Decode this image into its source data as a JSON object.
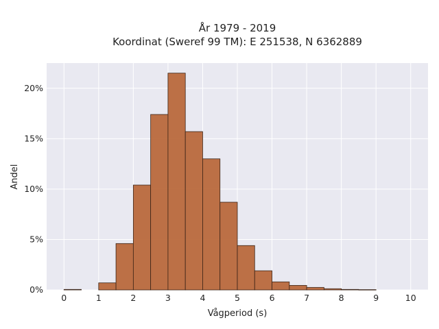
{
  "chart_data": {
    "type": "bar",
    "title_lines": [
      "År 1979 - 2019",
      "Koordinat (Sweref 99 TM): E 251538, N 6362889"
    ],
    "xlabel": "Vågperiod (s)",
    "ylabel": "Andel",
    "xlim": [
      -0.5,
      10.5
    ],
    "ylim": [
      0,
      22.5
    ],
    "x_ticks": [
      0,
      1,
      2,
      3,
      4,
      5,
      6,
      7,
      8,
      9,
      10
    ],
    "y_ticks": [
      0,
      5,
      10,
      15,
      20
    ],
    "y_tick_labels": [
      "0%",
      "5%",
      "10%",
      "15%",
      "20%"
    ],
    "bin_width": 0.5,
    "bins": [
      {
        "start": 0.0,
        "value": 0.05
      },
      {
        "start": 0.5,
        "value": 0
      },
      {
        "start": 1.0,
        "value": 0.7
      },
      {
        "start": 1.5,
        "value": 4.6
      },
      {
        "start": 2.0,
        "value": 10.4
      },
      {
        "start": 2.5,
        "value": 17.4
      },
      {
        "start": 3.0,
        "value": 21.5
      },
      {
        "start": 3.5,
        "value": 15.7
      },
      {
        "start": 4.0,
        "value": 13.0
      },
      {
        "start": 4.5,
        "value": 8.7
      },
      {
        "start": 5.0,
        "value": 4.4
      },
      {
        "start": 5.5,
        "value": 1.9
      },
      {
        "start": 6.0,
        "value": 0.8
      },
      {
        "start": 6.5,
        "value": 0.45
      },
      {
        "start": 7.0,
        "value": 0.25
      },
      {
        "start": 7.5,
        "value": 0.12
      },
      {
        "start": 8.0,
        "value": 0.05
      },
      {
        "start": 8.5,
        "value": 0.03
      }
    ],
    "bar_color": "#b9693c",
    "bar_edge_color": "#3a2417",
    "plot_background": "#e9e9f1",
    "grid": true,
    "grid_color": "#ffffff"
  }
}
